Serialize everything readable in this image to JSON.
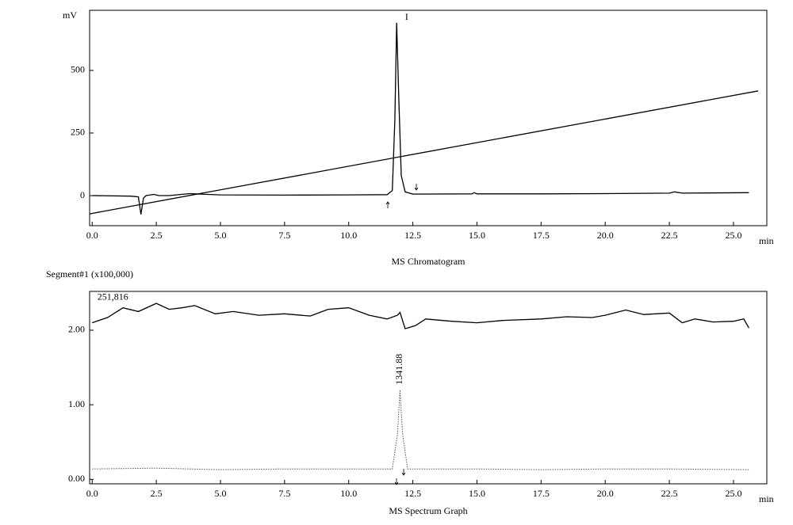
{
  "chart_data": [
    {
      "type": "line",
      "title": "MS Chromatogram",
      "y_label": "mV",
      "x_unit": "min",
      "xlim": [
        -0.1,
        26.3
      ],
      "ylim": [
        -120,
        740
      ],
      "xticks": [
        {
          "value": 0,
          "label": "0.0"
        },
        2.5,
        {
          "value": 5,
          "label": "5.0"
        },
        7.5,
        {
          "value": 10,
          "label": "10.0"
        },
        12.5,
        {
          "value": 15,
          "label": "15.0"
        },
        17.5,
        {
          "value": 20,
          "label": "20.0"
        },
        22.5,
        {
          "value": 25,
          "label": "25.0"
        }
      ],
      "yticks": [
        0,
        250,
        500
      ],
      "series": [
        {
          "color": "#000000",
          "style": "solid",
          "x": [
            0,
            1.5,
            1.8,
            1.9,
            2.0,
            2.1,
            2.4,
            2.6,
            3.0,
            3.8,
            4.5,
            5,
            7.5,
            10,
            11.5,
            11.7,
            11.8,
            11.87,
            11.95,
            12.05,
            12.2,
            12.5,
            14.8,
            14.9,
            15.0,
            17.5,
            20,
            22.5,
            22.7,
            23,
            25.6
          ],
          "values": [
            0,
            -2,
            -5,
            -75,
            -10,
            0,
            5,
            0,
            0,
            8,
            5,
            3,
            2,
            3,
            4,
            20,
            300,
            690,
            400,
            80,
            15,
            6,
            7,
            12,
            7,
            7,
            8,
            10,
            15,
            10,
            12
          ]
        },
        {
          "color": "#000000",
          "style": "solid",
          "x": [
            -0.1,
            25.96
          ],
          "values": [
            -73,
            418
          ]
        }
      ],
      "annotations": [
        {
          "text": "I",
          "x": 12.2,
          "y": 710
        }
      ]
    },
    {
      "type": "line",
      "title": "MS Spectrum Graph",
      "y_label": "Segment#1 (x100,000)",
      "x_unit": "min",
      "xlim": [
        -0.1,
        26.3
      ],
      "ylim": [
        -0.06,
        2.52
      ],
      "xticks": [
        {
          "value": 0,
          "label": "0.0"
        },
        2.5,
        {
          "value": 5,
          "label": "5.0"
        },
        7.5,
        {
          "value": 10,
          "label": "10.0"
        },
        12.5,
        {
          "value": 15,
          "label": "15.0"
        },
        17.5,
        {
          "value": 20,
          "label": "20.0"
        },
        22.5,
        {
          "value": 25,
          "label": "25.0"
        }
      ],
      "yticks": [
        {
          "value": 0,
          "label": "0.00"
        },
        {
          "value": 1,
          "label": "1.00"
        },
        {
          "value": 2,
          "label": "2.00"
        }
      ],
      "series": [
        {
          "color": "#000000",
          "style": "solid",
          "x": [
            0,
            0.6,
            1.2,
            1.8,
            2.5,
            3.0,
            3.5,
            4.0,
            4.8,
            5.5,
            6.5,
            7.5,
            8.5,
            9.2,
            10.0,
            10.8,
            11.5,
            11.9,
            12.0,
            12.2,
            12.6,
            13.0,
            14.0,
            15.0,
            16.0,
            17.5,
            18.5,
            19.5,
            20.0,
            20.8,
            21.5,
            22.5,
            23.0,
            23.5,
            24.2,
            25.0,
            25.4,
            25.6
          ],
          "values": [
            2.1,
            2.17,
            2.3,
            2.25,
            2.36,
            2.28,
            2.3,
            2.33,
            2.22,
            2.25,
            2.2,
            2.22,
            2.19,
            2.28,
            2.3,
            2.2,
            2.15,
            2.2,
            2.24,
            2.02,
            2.06,
            2.15,
            2.12,
            2.1,
            2.13,
            2.15,
            2.18,
            2.17,
            2.2,
            2.27,
            2.21,
            2.23,
            2.1,
            2.15,
            2.11,
            2.12,
            2.15,
            2.03
          ]
        },
        {
          "color": "#555555",
          "style": "dotted",
          "x": [
            0,
            2.5,
            5,
            7.5,
            10,
            11.7,
            11.9,
            12.0,
            12.1,
            12.3,
            15,
            17.5,
            20,
            22.5,
            25.6
          ],
          "values": [
            0.14,
            0.15,
            0.13,
            0.14,
            0.14,
            0.14,
            0.6,
            1.2,
            0.6,
            0.14,
            0.14,
            0.13,
            0.14,
            0.14,
            0.13
          ]
        }
      ],
      "annotations": [
        {
          "text": "251,816",
          "x": 0.2,
          "y": 2.44
        },
        {
          "text": "1341.88",
          "x": 12.0,
          "y": 1.27,
          "rotate": -90
        }
      ]
    }
  ]
}
